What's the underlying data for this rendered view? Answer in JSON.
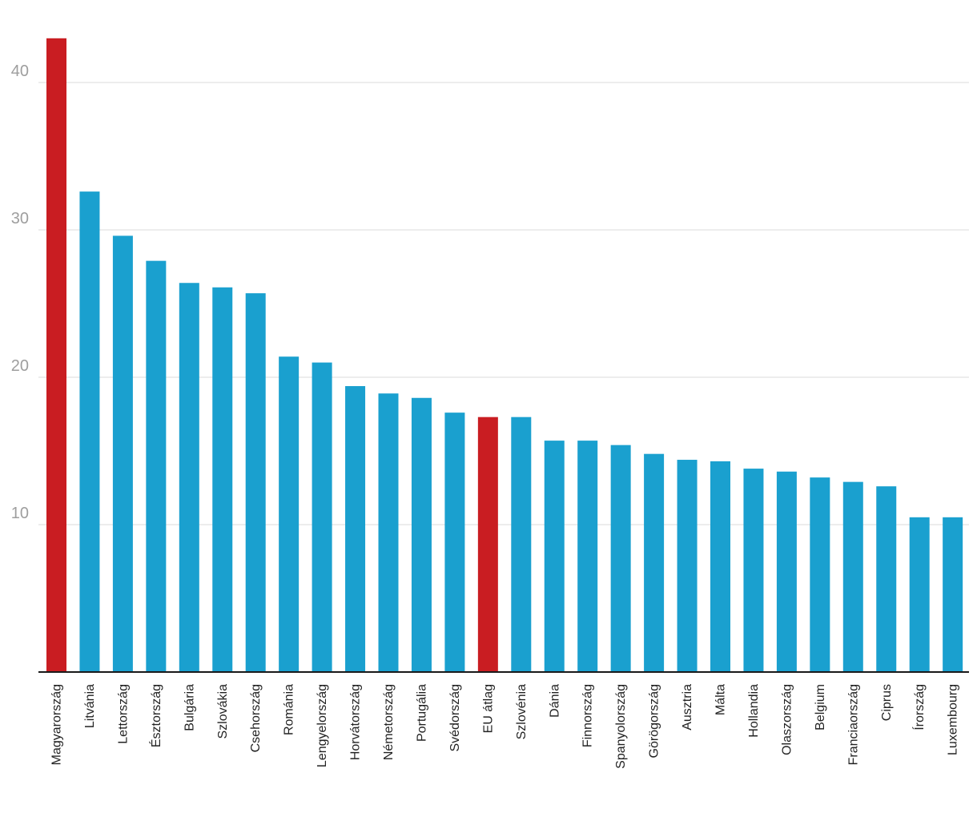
{
  "colors": {
    "bar": "#1aa0cf",
    "highlight": "#c91d22"
  },
  "chart_data": {
    "type": "bar",
    "categories": [
      "Magyarország",
      "Litvánia",
      "Lettország",
      "Észtország",
      "Bulgária",
      "Szlovákia",
      "Csehország",
      "Románia",
      "Lengyelország",
      "Horvátország",
      "Németország",
      "Portugália",
      "Svédország",
      "EU átlag",
      "Szlovénia",
      "Dánia",
      "Finnország",
      "Spanyolország",
      "Görögország",
      "Ausztria",
      "Málta",
      "Hollandia",
      "Olaszország",
      "Belgium",
      "Franciaország",
      "Ciprus",
      "Írország",
      "Luxembourg"
    ],
    "values": [
      43.0,
      32.6,
      29.6,
      27.9,
      26.4,
      26.1,
      25.7,
      21.4,
      21.0,
      19.4,
      18.9,
      18.6,
      17.6,
      17.3,
      17.3,
      15.7,
      15.7,
      15.4,
      14.8,
      14.4,
      14.3,
      13.8,
      13.6,
      13.2,
      12.9,
      12.6,
      10.5,
      10.5
    ],
    "highlighted": [
      "Magyarország",
      "EU átlag"
    ],
    "yticks": [
      "10",
      "20",
      "30",
      "40"
    ],
    "ylim": [
      0,
      43
    ],
    "grid": true,
    "title": "",
    "xlabel": "",
    "ylabel": ""
  }
}
